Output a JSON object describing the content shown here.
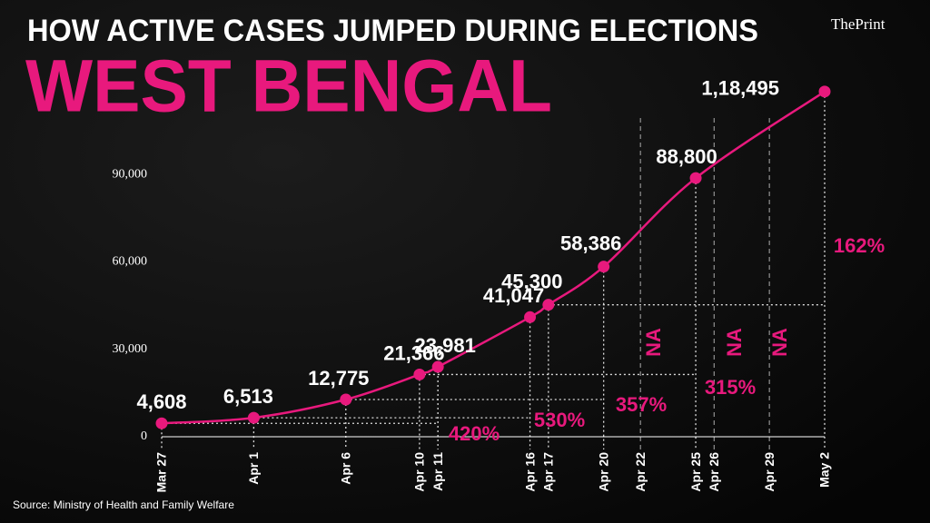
{
  "chart_data": {
    "type": "line",
    "title": "HOW ACTIVE CASES JUMPED DURING ELECTIONS",
    "subtitle": "WEST BENGAL",
    "brand": "ThePrint",
    "source": "Source: Ministry of Health and Family Welfare",
    "xticks": [
      "Mar 27",
      "Apr 1",
      "Apr 6",
      "Apr 10",
      "Apr 11",
      "Apr 16",
      "Apr 17",
      "Apr 20",
      "Apr 22",
      "Apr 25",
      "Apr 26",
      "Apr 29",
      "May 2"
    ],
    "series": [
      {
        "name": "Active cases",
        "color": "#e8197d",
        "x": [
          "Mar 27",
          "Apr 1",
          "Apr 6",
          "Apr 10",
          "Apr 11",
          "Apr 16",
          "Apr 17",
          "Apr 20",
          "Apr 25",
          "May 2"
        ],
        "values": [
          4608,
          6513,
          12775,
          21366,
          23981,
          41047,
          45300,
          58386,
          88800,
          118495
        ],
        "value_labels": [
          "4,608",
          "6,513",
          "12,775",
          "21,366",
          "23,981",
          "41,047",
          "45,300",
          "58,386",
          "88,800",
          "1,18,495"
        ]
      }
    ],
    "annotations": [
      "420%",
      "530%",
      "357%",
      "315%",
      "162%",
      "NA",
      "NA",
      "NA"
    ],
    "ylim": [
      0,
      120000
    ],
    "yticks": [
      0,
      {
        "value": 30000,
        "label": "30,000"
      },
      {
        "value": 60000,
        "label": "60,000"
      },
      {
        "value": 90000,
        "label": "90,000"
      }
    ]
  }
}
